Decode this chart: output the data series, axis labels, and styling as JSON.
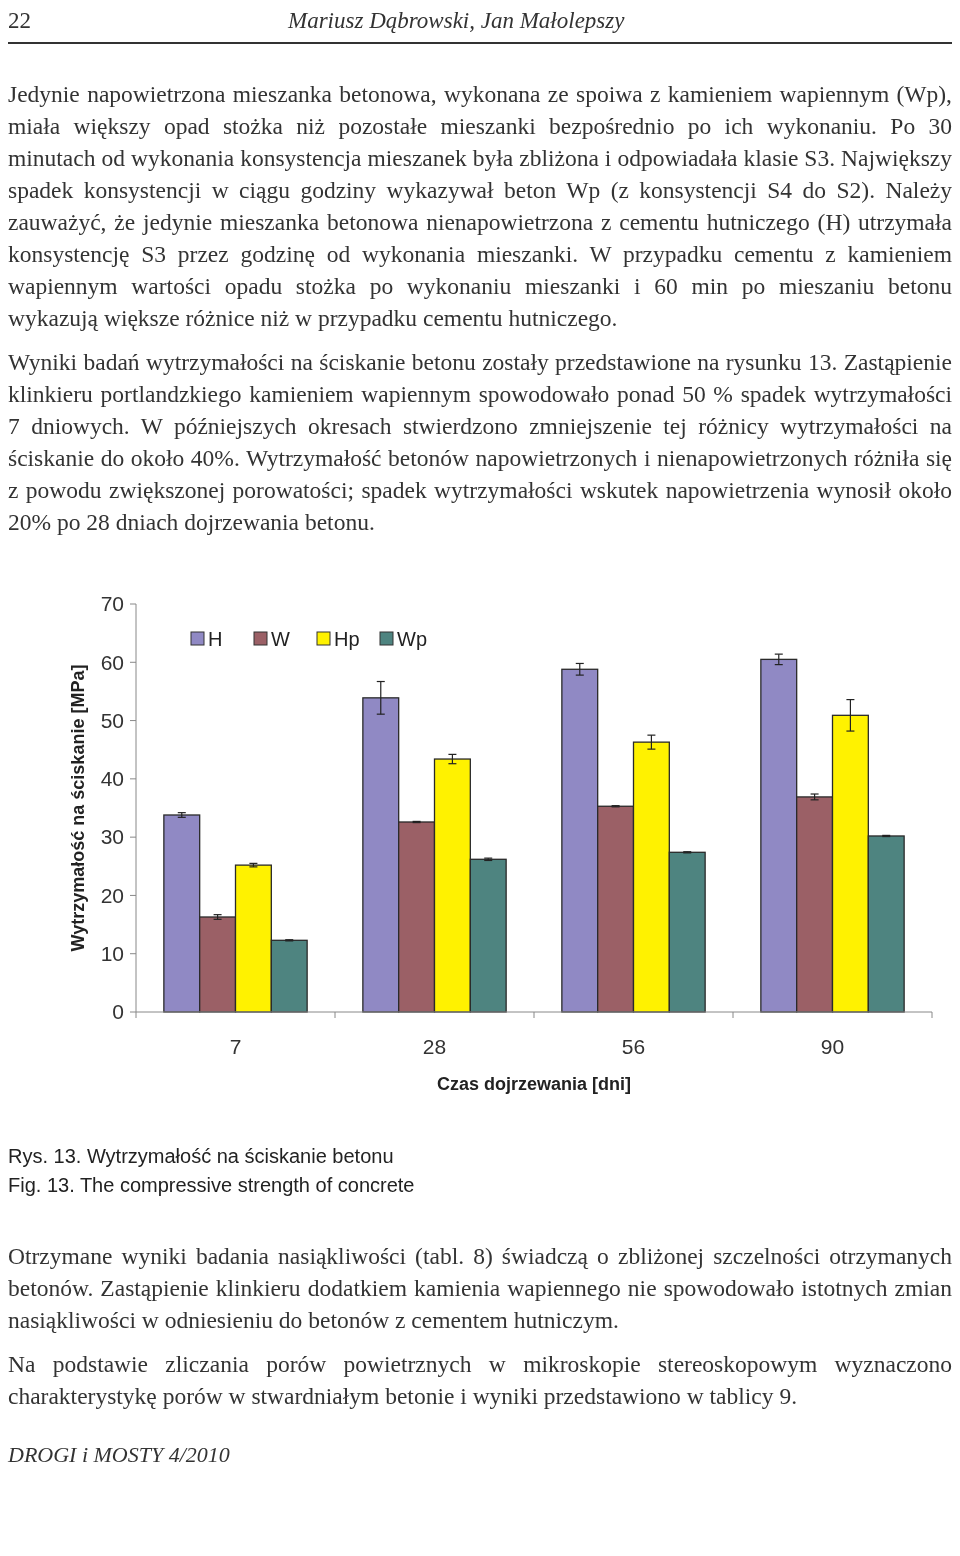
{
  "chart_data": {
    "type": "bar",
    "xlabel": "Czas dojrzewania [dni]",
    "ylabel": "Wytrzymałość na ściskanie [MPa]",
    "categories": [
      "7",
      "28",
      "56",
      "90"
    ],
    "series": [
      {
        "name": "H",
        "color": "#9089c4",
        "values": [
          33.8,
          53.9,
          58.8,
          60.5
        ],
        "errors": [
          0.4,
          2.8,
          1.0,
          0.9
        ]
      },
      {
        "name": "W",
        "color": "#9b6066",
        "values": [
          16.3,
          32.6,
          35.3,
          36.9
        ],
        "errors": [
          0.4,
          0.1,
          0.1,
          0.5
        ]
      },
      {
        "name": "Hp",
        "color": "#fff200",
        "values": [
          25.2,
          43.4,
          46.3,
          50.9
        ],
        "errors": [
          0.3,
          0.8,
          1.2,
          2.7
        ]
      },
      {
        "name": "Wp",
        "color": "#4e8480",
        "values": [
          12.3,
          26.2,
          27.4,
          30.2
        ],
        "errors": [
          0.1,
          0.2,
          0.1,
          0.1
        ]
      }
    ],
    "ylim": [
      0,
      70
    ],
    "yticks": [
      0,
      10,
      20,
      30,
      40,
      50,
      60,
      70
    ],
    "grid": false,
    "legend": "top left",
    "annotations": [
      "22",
      "Mariusz Dąbrowski, Jan Małolepszy",
      "Jedynie napowietrzona mieszanka betonowa, wykonana ze spoiwa z kamieniem wapiennym (Wp), miała większy opad stożka niż pozostałe mieszanki bezpośrednio po ich wykonaniu. Po 30 minutach od wykonania konsystencja mieszanek była zbliżona i odpowiadała klasie S3. Największy spadek konsystencji w ciągu godziny wykazywał beton Wp (z konsystencji S4 do S2). Należy zauważyć, że jedynie mieszanka betonowa nienapowietrzona z cementu hutniczego (H) utrzymała konsystencję S3 przez godzinę od wykonania mieszanki. W przypadku cementu z kamieniem wapiennym wartości opadu stożka po wykonaniu mieszanki i 60 min po mieszaniu betonu wykazują większe różnice niż w przypadku cementu hutniczego.",
      "Wyniki badań wytrzymałości na ściskanie betonu zostały przedstawione na rysunku 13. Zastąpienie klinkieru portlandzkiego kamieniem wapiennym spowodowało ponad 50 % spadek wytrzymałości 7 dniowych. W późniejszych okresach stwierdzono zmniejszenie tej różnicy wytrzymałości na ściskanie do około 40%. Wytrzymałość betonów napowietrzonych i nienapowietrzonych różniła się z powodu zwiększonej porowatości; spadek wytrzymałości wskutek napowietrzenia wynosił około 20% po 28 dniach dojrzewania betonu.",
      "Rys. 13. Wytrzymałość na ściskanie betonu",
      "Fig. 13. The compressive strength of concrete",
      "Otrzymane wyniki badania nasiąkliwości (tabl. 8) świadczą o zbliżonej szczelności otrzymanych betonów. Zastąpienie klinkieru dodatkiem kamienia wapiennego nie spowodowało istotnych zmian nasiąkliwości w odniesieniu do betonów z cementem hutniczym.",
      "Na podstawie zliczania porów powietrznych w mikroskopie stereoskopowym wyznaczono charakterystykę porów w stwardniałym betonie i wyniki przedstawiono w tablicy 9.",
      "DROGI i MOSTY 4/2010"
    ]
  }
}
